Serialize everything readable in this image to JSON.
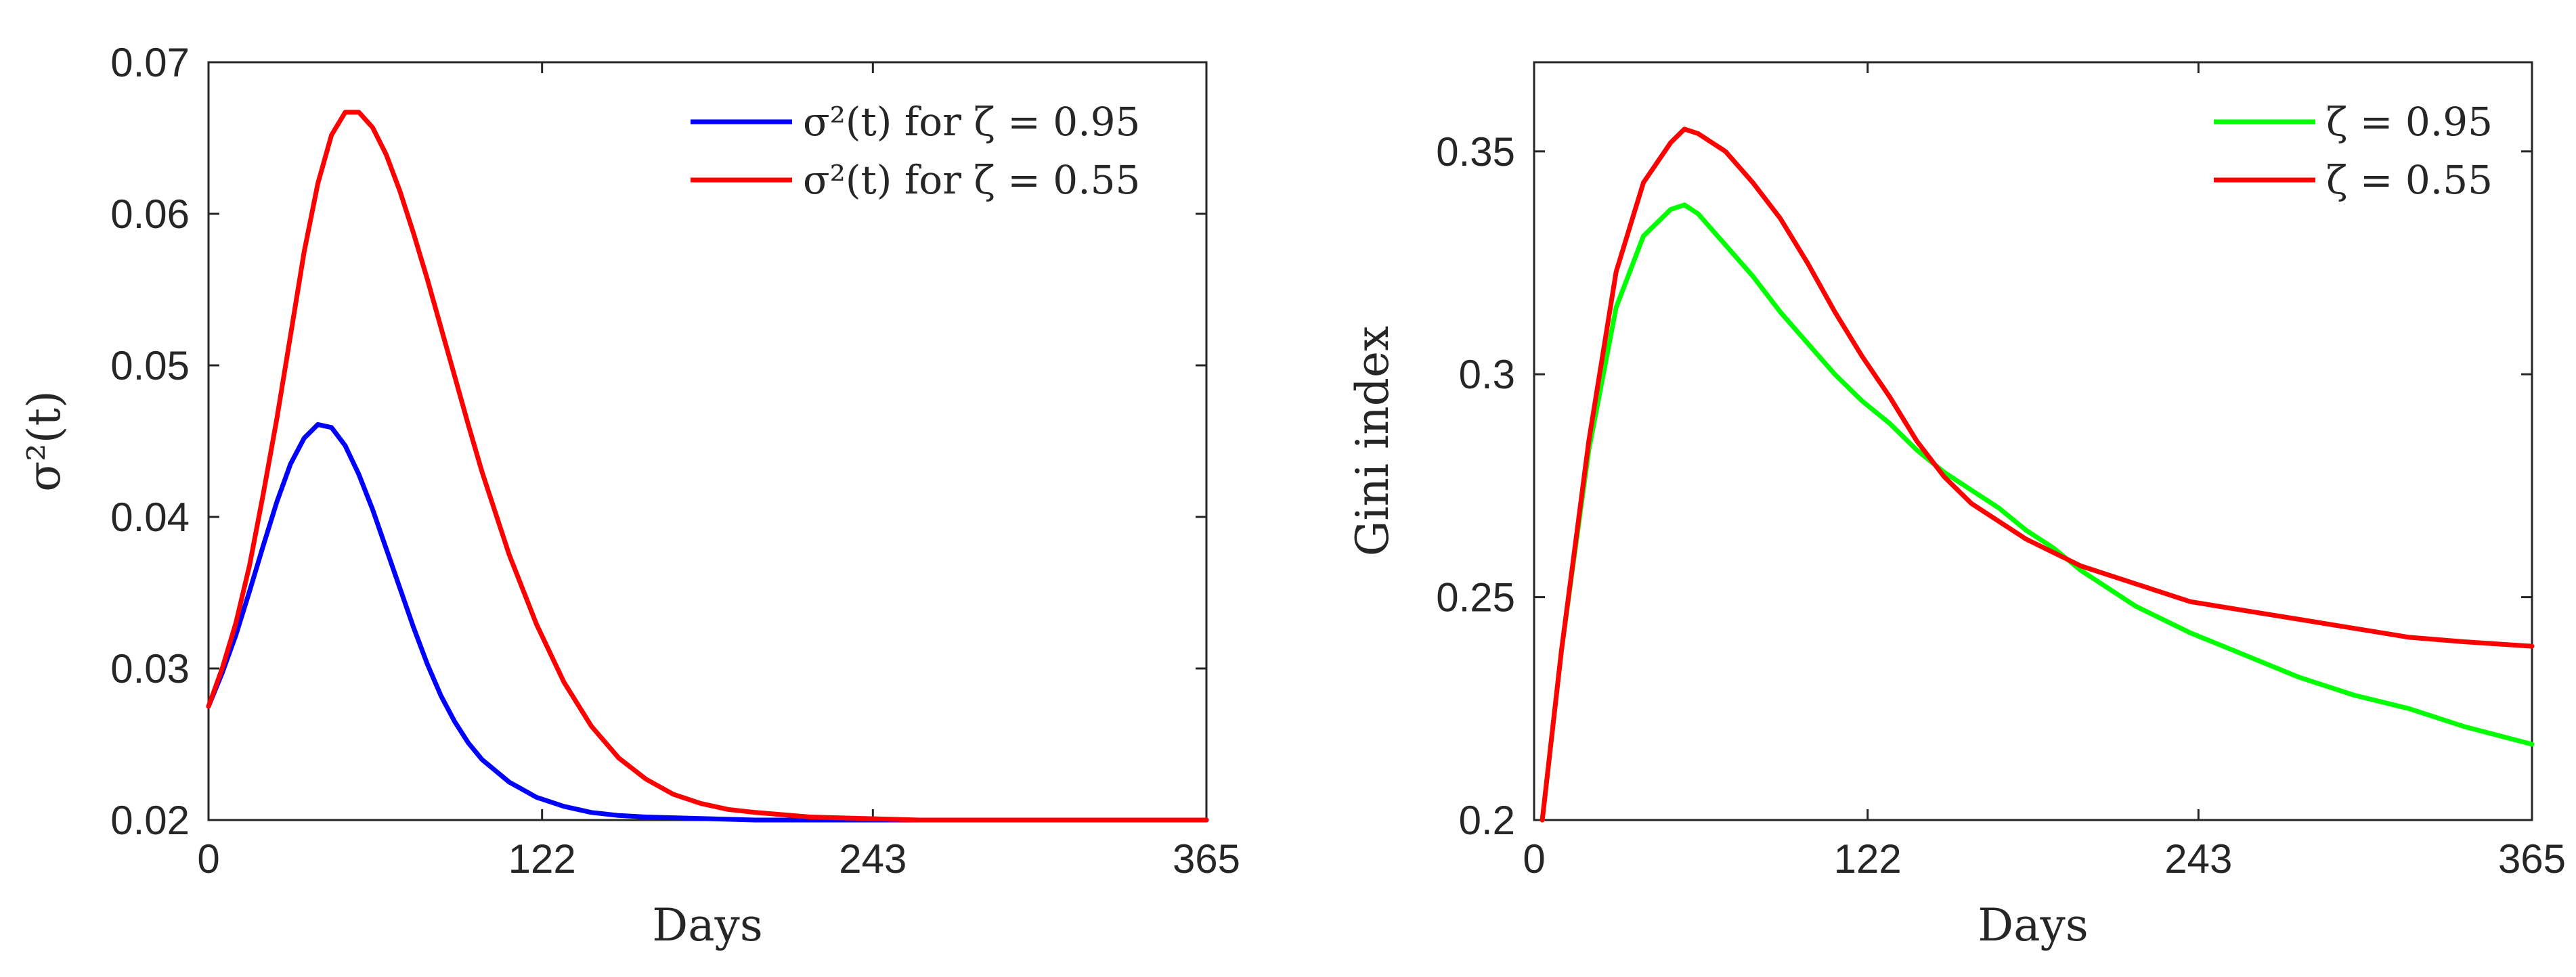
{
  "chart_data": [
    {
      "type": "line",
      "xlabel": "Days",
      "ylabel": "σ²(t)",
      "xlim": [
        0,
        365
      ],
      "ylim": [
        0.02,
        0.07
      ],
      "xticks": [
        0,
        122,
        243,
        365
      ],
      "xtick_labels": [
        "0",
        "122",
        "243",
        "365"
      ],
      "yticks": [
        0.02,
        0.03,
        0.04,
        0.05,
        0.06,
        0.07
      ],
      "ytick_labels": [
        "0.02",
        "0.03",
        "0.04",
        "0.05",
        "0.06",
        "0.07"
      ],
      "legend_position": "top-right",
      "series": [
        {
          "name": "σ²(t) for ζ = 0.95",
          "color": "#0000ff",
          "x": [
            0,
            5,
            10,
            15,
            20,
            25,
            30,
            35,
            40,
            45,
            50,
            55,
            60,
            65,
            70,
            75,
            80,
            85,
            90,
            95,
            100,
            110,
            120,
            130,
            140,
            150,
            160,
            180,
            200,
            250,
            300,
            365
          ],
          "y": [
            0.0275,
            0.0297,
            0.0322,
            0.0351,
            0.0381,
            0.041,
            0.0435,
            0.0452,
            0.0461,
            0.0459,
            0.0447,
            0.0428,
            0.0405,
            0.0379,
            0.0353,
            0.0327,
            0.0303,
            0.0282,
            0.0265,
            0.0251,
            0.024,
            0.0225,
            0.0215,
            0.0209,
            0.0205,
            0.0203,
            0.0202,
            0.0201,
            0.02,
            0.02,
            0.02,
            0.02
          ]
        },
        {
          "name": "σ²(t) for ζ = 0.55",
          "color": "#ff0000",
          "x": [
            0,
            5,
            10,
            15,
            20,
            25,
            30,
            35,
            40,
            45,
            50,
            55,
            60,
            65,
            70,
            75,
            80,
            85,
            90,
            95,
            100,
            110,
            120,
            130,
            140,
            150,
            160,
            170,
            180,
            190,
            200,
            220,
            240,
            260,
            280,
            300,
            365
          ],
          "y": [
            0.0275,
            0.03,
            0.033,
            0.0368,
            0.0415,
            0.0465,
            0.052,
            0.0575,
            0.062,
            0.0652,
            0.0667,
            0.0667,
            0.0657,
            0.0639,
            0.0615,
            0.0587,
            0.0557,
            0.0525,
            0.0493,
            0.0461,
            0.043,
            0.0375,
            0.0329,
            0.0291,
            0.0262,
            0.0241,
            0.0227,
            0.0217,
            0.0211,
            0.0207,
            0.0205,
            0.0202,
            0.0201,
            0.02,
            0.02,
            0.02,
            0.02
          ]
        }
      ]
    },
    {
      "type": "line",
      "xlabel": "Days",
      "ylabel": "Gini index",
      "xlim": [
        0,
        365
      ],
      "ylim": [
        0.2,
        0.37
      ],
      "xticks": [
        0,
        122,
        243,
        365
      ],
      "xtick_labels": [
        "0",
        "122",
        "243",
        "365"
      ],
      "yticks": [
        0.2,
        0.25,
        0.3,
        0.35
      ],
      "ytick_labels": [
        "0.2",
        "0.25",
        "0.3",
        "0.35"
      ],
      "legend_position": "top-right",
      "series": [
        {
          "name": "ζ = 0.95",
          "color": "#00ff00",
          "x": [
            3,
            10,
            20,
            30,
            40,
            50,
            55,
            60,
            70,
            80,
            90,
            100,
            110,
            120,
            130,
            140,
            150,
            160,
            170,
            180,
            190,
            200,
            220,
            240,
            260,
            280,
            300,
            320,
            340,
            365
          ],
          "y": [
            0.2,
            0.238,
            0.283,
            0.315,
            0.331,
            0.337,
            0.338,
            0.336,
            0.329,
            0.322,
            0.314,
            0.307,
            0.3,
            0.294,
            0.289,
            0.283,
            0.278,
            0.274,
            0.27,
            0.265,
            0.261,
            0.256,
            0.248,
            0.242,
            0.237,
            0.232,
            0.228,
            0.225,
            0.221,
            0.217
          ]
        },
        {
          "name": "ζ = 0.55",
          "color": "#ff0000",
          "x": [
            3,
            10,
            20,
            30,
            40,
            50,
            55,
            60,
            70,
            80,
            90,
            100,
            110,
            120,
            130,
            140,
            150,
            160,
            170,
            180,
            190,
            200,
            220,
            240,
            260,
            280,
            300,
            320,
            340,
            365
          ],
          "y": [
            0.2,
            0.238,
            0.285,
            0.323,
            0.343,
            0.352,
            0.355,
            0.354,
            0.35,
            0.343,
            0.335,
            0.325,
            0.314,
            0.304,
            0.295,
            0.285,
            0.277,
            0.271,
            0.267,
            0.263,
            0.26,
            0.257,
            0.253,
            0.249,
            0.247,
            0.245,
            0.243,
            0.241,
            0.24,
            0.239
          ]
        }
      ]
    }
  ]
}
